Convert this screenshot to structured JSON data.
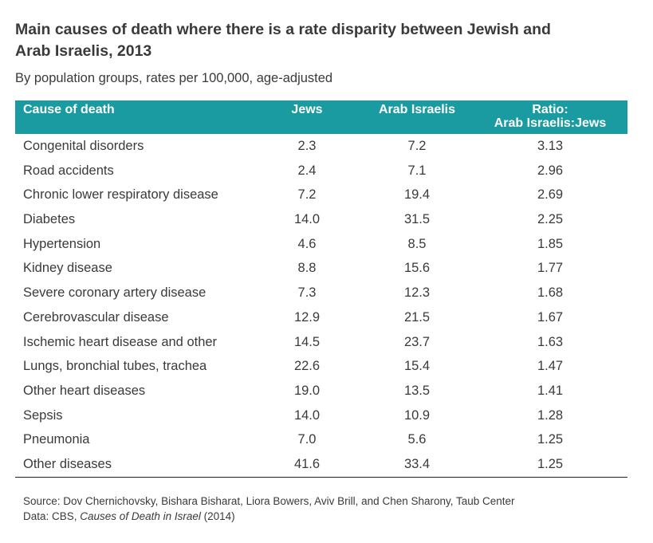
{
  "title": "Main causes of death where there is a rate disparity between Jewish and Arab Israelis, 2013",
  "subtitle": "By population groups, rates per 100,000, age-adjusted",
  "colors": {
    "header_bg": "#1a9ba1",
    "header_text": "#ffffff",
    "body_text": "#3a3a3a"
  },
  "chart_data": {
    "type": "table",
    "title": "Main causes of death where there is a rate disparity between Jewish and Arab Israelis, 2013",
    "subtitle": "By population groups, rates per 100,000, age-adjusted",
    "columns": [
      "Cause of death",
      "Jews",
      "Arab Israelis",
      "Ratio:",
      "Arab Israelis:Jews"
    ],
    "rows": [
      {
        "cause": "Congenital disorders",
        "jews": "2.3",
        "arab": "7.2",
        "ratio": "3.13"
      },
      {
        "cause": "Road accidents",
        "jews": "2.4",
        "arab": "7.1",
        "ratio": "2.96"
      },
      {
        "cause": "Chronic lower respiratory disease",
        "jews": "7.2",
        "arab": "19.4",
        "ratio": "2.69"
      },
      {
        "cause": "Diabetes",
        "jews": "14.0",
        "arab": "31.5",
        "ratio": "2.25"
      },
      {
        "cause": "Hypertension",
        "jews": "4.6",
        "arab": "8.5",
        "ratio": "1.85"
      },
      {
        "cause": "Kidney disease",
        "jews": "8.8",
        "arab": "15.6",
        "ratio": "1.77"
      },
      {
        "cause": "Severe coronary artery disease",
        "jews": "7.3",
        "arab": "12.3",
        "ratio": "1.68"
      },
      {
        "cause": "Cerebrovascular disease",
        "jews": "12.9",
        "arab": "21.5",
        "ratio": "1.67"
      },
      {
        "cause": "Ischemic heart disease and other",
        "jews": "14.5",
        "arab": "23.7",
        "ratio": "1.63"
      },
      {
        "cause": "Lungs, bronchial tubes, trachea",
        "jews": "22.6",
        "arab": "15.4",
        "ratio": "1.47"
      },
      {
        "cause": "Other heart diseases",
        "jews": "19.0",
        "arab": "13.5",
        "ratio": "1.41"
      },
      {
        "cause": "Sepsis",
        "jews": "14.0",
        "arab": "10.9",
        "ratio": "1.28"
      },
      {
        "cause": "Pneumonia",
        "jews": "7.0",
        "arab": "5.6",
        "ratio": "1.25"
      },
      {
        "cause": "Other diseases",
        "jews": "41.6",
        "arab": "33.4",
        "ratio": "1.25"
      }
    ]
  },
  "source": {
    "line1": "Source: Dov Chernichovsky, Bishara Bisharat, Liora Bowers, Aviv Brill, and Chen Sharony, Taub Center",
    "line2_prefix": "Data: CBS, ",
    "line2_italic": "Causes of Death in Israel",
    "line2_suffix": " (2014)"
  }
}
